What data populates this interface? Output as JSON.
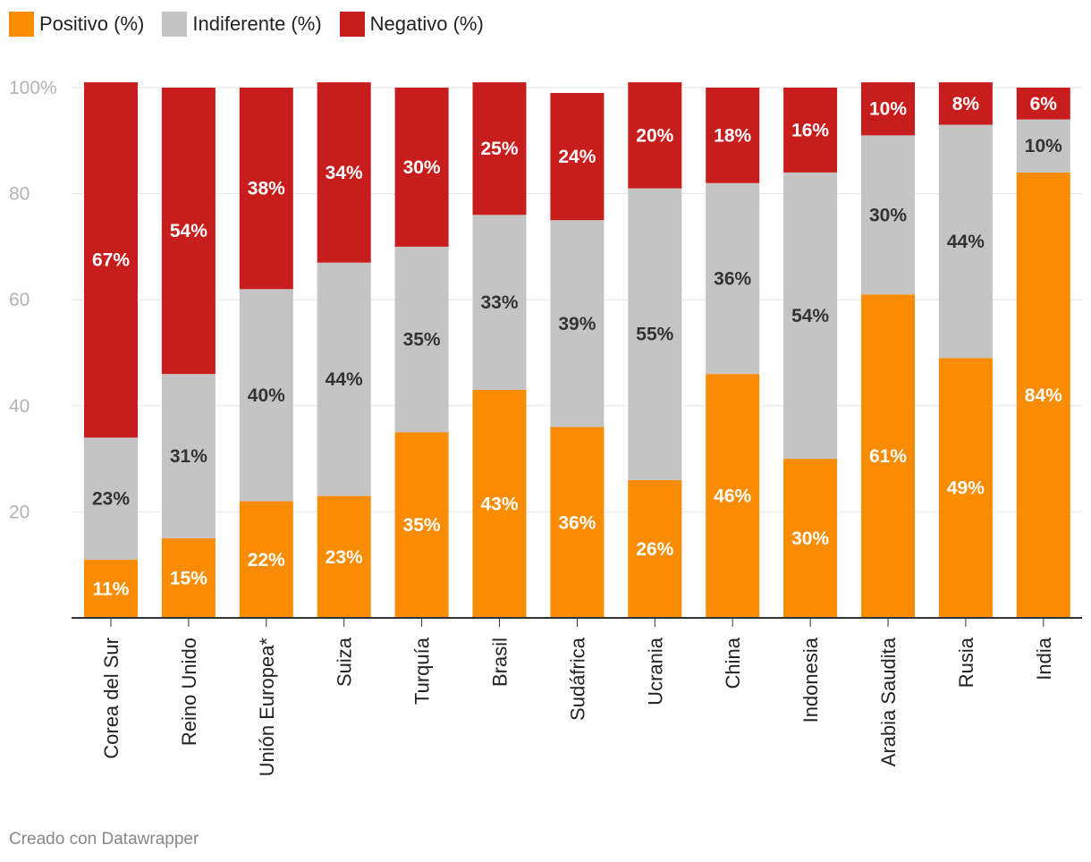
{
  "chart_data": {
    "type": "bar",
    "stacked": true,
    "orientation": "vertical",
    "categories": [
      "Corea del Sur",
      "Reino Unido",
      "Unión Europea*",
      "Suiza",
      "Turquía",
      "Brasil",
      "Sudáfrica",
      "Ucrania",
      "China",
      "Indonesia",
      "Arabia Saudita",
      "Rusia",
      "India"
    ],
    "series": [
      {
        "name": "Positivo (%)",
        "color": "#f98c00",
        "label_color": "#ffffff",
        "values": [
          11,
          15,
          22,
          23,
          35,
          43,
          36,
          26,
          46,
          30,
          61,
          49,
          84
        ]
      },
      {
        "name": "Indiferente (%)",
        "color": "#c4c4c4",
        "label_color": "#333333",
        "values": [
          23,
          31,
          40,
          44,
          35,
          33,
          39,
          55,
          36,
          54,
          30,
          44,
          10
        ]
      },
      {
        "name": "Negativo (%)",
        "color": "#c71e1d",
        "label_color": "#ffffff",
        "values": [
          67,
          54,
          38,
          34,
          30,
          25,
          24,
          20,
          18,
          16,
          10,
          8,
          6
        ]
      }
    ],
    "value_suffix": "%",
    "ylim": [
      0,
      100
    ],
    "yticks": [
      20,
      40,
      60,
      80,
      100
    ],
    "ytick_labels": [
      "20",
      "40",
      "60",
      "80",
      "100%"
    ],
    "grid": true,
    "legend_position": "top-left",
    "credit": "Creado con Datawrapper"
  }
}
